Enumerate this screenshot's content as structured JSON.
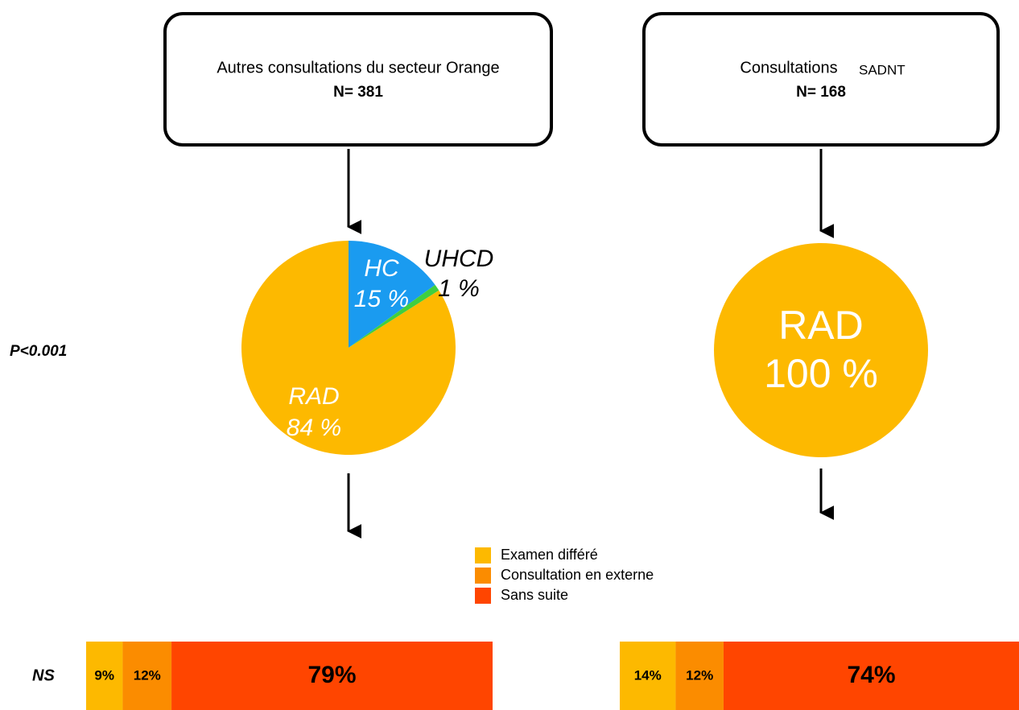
{
  "boxes": [
    {
      "title": "Autres consultations du secteur Orange",
      "n": "N= 381"
    },
    {
      "title": "Consultations",
      "subtitle": "SADNT",
      "n": "N= 168"
    }
  ],
  "pies": [
    {
      "slices": [
        {
          "name": "HC",
          "value": 15,
          "label": "15 %",
          "color": "#1a9bf0"
        },
        {
          "name": "UHCD",
          "value": 1,
          "label": "1 %",
          "color": "#3fcf3f"
        },
        {
          "name": "RAD",
          "value": 84,
          "label": "84 %",
          "color": "#fdb900"
        }
      ]
    },
    {
      "slices": [
        {
          "name": "RAD",
          "value": 100,
          "label": "100 %",
          "color": "#fdb900"
        }
      ]
    }
  ],
  "p_value": "P<0.001",
  "legend": [
    {
      "name": "Examen différé",
      "color": "#fdb900"
    },
    {
      "name": "Consultation en  externe",
      "color": "#fb8c00"
    },
    {
      "name": "Sans suite",
      "color": "#ff4500"
    }
  ],
  "bars": {
    "label": "NS",
    "rows": [
      {
        "values": [
          9,
          12,
          79
        ],
        "value_labels": [
          "9%",
          "12%",
          "79%"
        ]
      },
      {
        "values": [
          14,
          12,
          74
        ],
        "value_labels": [
          "14%",
          "12%",
          "74%"
        ]
      }
    ]
  }
}
